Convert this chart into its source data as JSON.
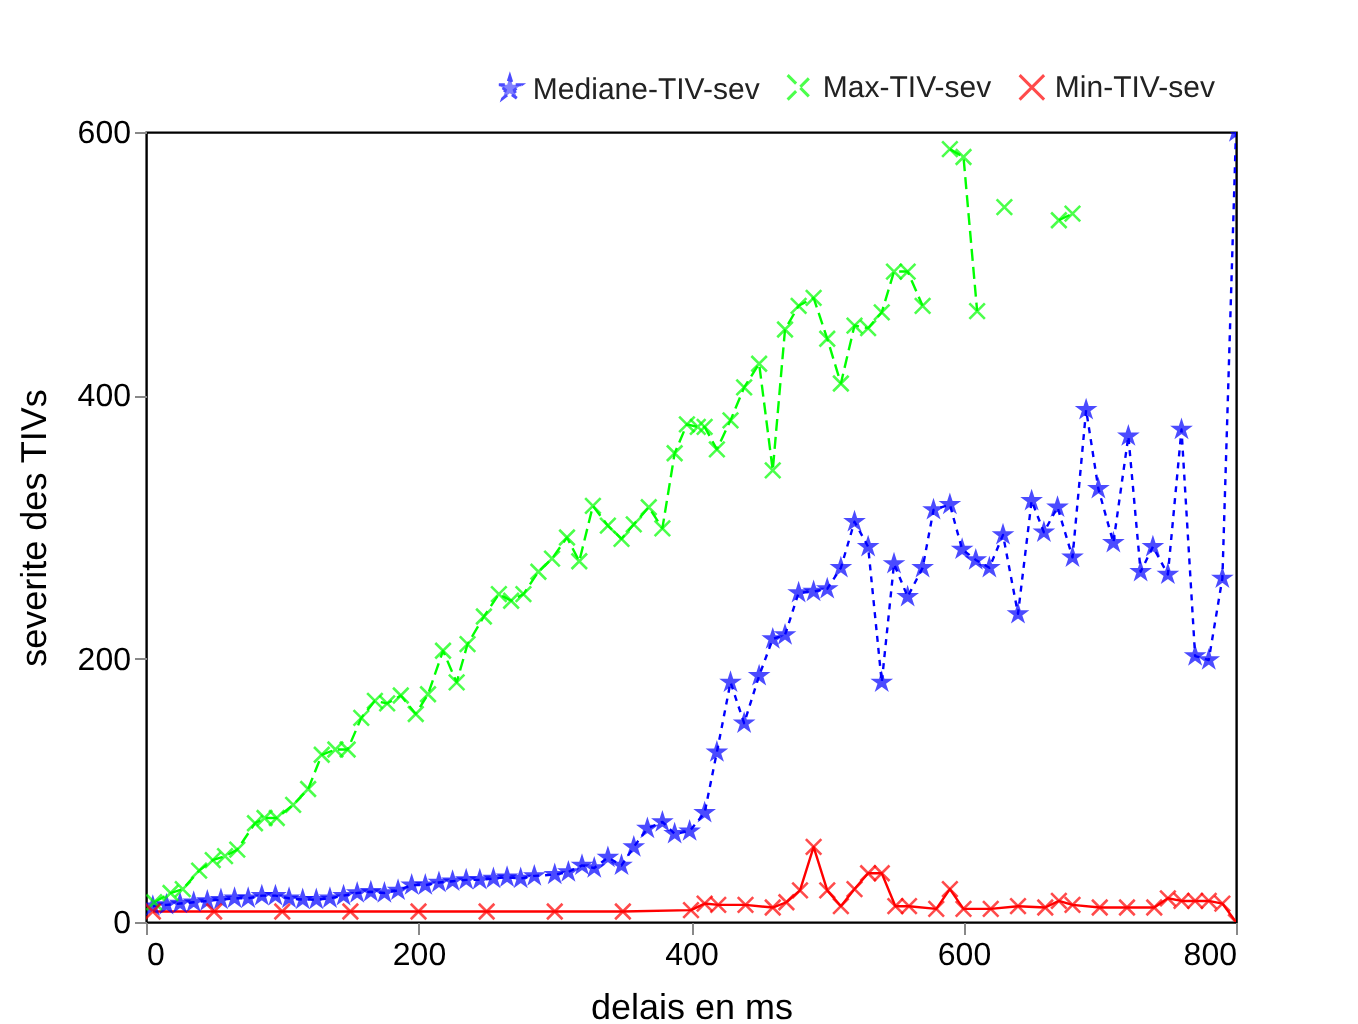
{
  "chart_data": {
    "type": "line",
    "xlabel": "delais en ms",
    "ylabel": "severite des TIVs",
    "xlim": [
      0,
      800
    ],
    "xticks": [
      0,
      200,
      400,
      600,
      800
    ],
    "ylim": [
      0,
      600
    ],
    "yticks": [
      0,
      200,
      400,
      600
    ],
    "grid": false,
    "legend": "top right",
    "series": [
      {
        "name": "Mediane-TIV-sev",
        "color": "#0000ff",
        "marker": "star",
        "line_style": "dotted",
        "x": [
          5,
          15,
          25,
          35,
          45,
          55,
          65,
          75,
          85,
          95,
          105,
          115,
          125,
          135,
          145,
          155,
          165,
          175,
          185,
          195,
          205,
          215,
          225,
          235,
          245,
          255,
          265,
          275,
          285,
          300,
          310,
          320,
          329,
          339,
          349,
          358,
          368,
          379,
          388,
          399,
          410,
          419,
          429,
          439,
          450,
          460,
          469,
          479,
          490,
          500,
          510,
          520,
          530,
          540,
          549,
          559,
          570,
          578,
          590,
          599,
          609,
          619,
          629,
          640,
          650,
          659,
          669,
          680,
          690,
          699,
          710,
          721,
          730,
          739,
          750,
          760,
          770,
          780,
          790,
          800
        ],
        "values": [
          12,
          13,
          14,
          15,
          16,
          17,
          18,
          18,
          20,
          20,
          18,
          17,
          17,
          18,
          20,
          22,
          23,
          22,
          24,
          28,
          28,
          30,
          31,
          32,
          32,
          33,
          34,
          33,
          35,
          36,
          38,
          43,
          41,
          49,
          43,
          57,
          71,
          76,
          67,
          69,
          83,
          129,
          182,
          151,
          187,
          215,
          218,
          250,
          251,
          253,
          269,
          304,
          285,
          182,
          272,
          247,
          269,
          313,
          317,
          283,
          275,
          269,
          294,
          234,
          320,
          296,
          315,
          277,
          389,
          329,
          288,
          369,
          266,
          285,
          264,
          374,
          202,
          199,
          261,
          600
        ]
      },
      {
        "name": "Max-TIV-sev",
        "color": "#00ff00",
        "marker": "cross",
        "line_style": "dashed",
        "x": [
          6,
          18,
          27,
          39,
          49,
          58,
          67,
          80,
          87,
          96,
          108,
          119,
          129,
          139,
          148,
          158,
          168,
          177,
          187,
          198,
          207,
          218,
          228,
          236,
          248,
          259,
          268,
          277,
          288,
          298,
          309,
          318,
          328,
          339,
          349,
          358,
          369,
          379,
          388,
          397,
          405,
          410,
          419,
          429,
          439,
          450,
          460,
          469,
          479,
          490,
          500,
          510,
          520,
          530,
          540,
          549,
          559,
          570,
          580,
          590,
          600,
          610,
          620,
          630,
          640,
          670,
          680
        ],
        "values": [
          15,
          22,
          25,
          39,
          47,
          50,
          55,
          75,
          79,
          79,
          89,
          101,
          127,
          131,
          131,
          155,
          168,
          166,
          172,
          158,
          173,
          206,
          182,
          211,
          232,
          249,
          244,
          249,
          266,
          276,
          292,
          274,
          316,
          301,
          291,
          302,
          315,
          299,
          356,
          378,
          376,
          376,
          359,
          381,
          406,
          424,
          343,
          450,
          468,
          474,
          443,
          409,
          453,
          451,
          463,
          494,
          494,
          468,
          null,
          587,
          581,
          464,
          null,
          543,
          null,
          533,
          538
        ]
      },
      {
        "name": "Min-TIV-sev",
        "color": "#ff0000",
        "marker": "cross",
        "line_style": "solid",
        "x": [
          5,
          50,
          100,
          150,
          200,
          250,
          300,
          350,
          400,
          410,
          420,
          440,
          460,
          470,
          480,
          490,
          500,
          510,
          520,
          530,
          540,
          550,
          560,
          580,
          590,
          600,
          620,
          640,
          660,
          670,
          680,
          700,
          720,
          740,
          750,
          760,
          770,
          780,
          790,
          800
        ],
        "values": [
          8,
          8,
          8,
          8,
          8,
          8,
          8,
          8,
          9,
          14,
          13,
          13,
          11,
          15,
          24,
          57,
          24,
          12,
          25,
          37,
          37,
          12,
          12,
          10,
          25,
          10,
          10,
          12,
          11,
          16,
          13,
          11,
          11,
          11,
          18,
          16,
          16,
          16,
          14,
          0
        ]
      }
    ]
  }
}
